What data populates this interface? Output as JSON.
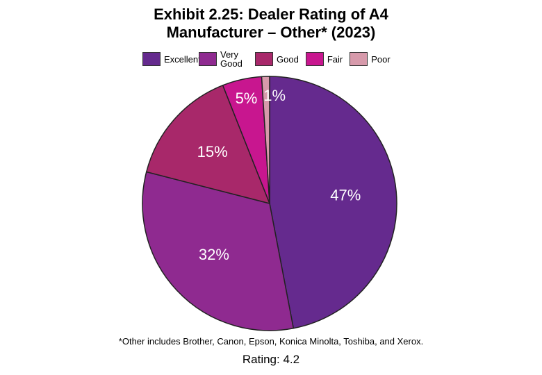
{
  "chart_data": {
    "type": "pie",
    "title": "Exhibit 2.25: Dealer Rating of A4 Manufacturer – Other* (2023)",
    "categories": [
      "Excellent",
      "Very Good",
      "Good",
      "Fair",
      "Poor"
    ],
    "values": [
      47,
      32,
      15,
      5,
      1
    ],
    "value_labels": [
      "47%",
      "32%",
      "15%",
      "5%",
      "1%"
    ],
    "colors": [
      "#652a8e",
      "#8f2a90",
      "#a8286a",
      "#c8168f",
      "#d79aab"
    ],
    "footnote": "*Other includes Brother, Canon, Epson, Konica Minolta, Toshiba, and Xerox.",
    "rating": "Rating: 4.2"
  }
}
